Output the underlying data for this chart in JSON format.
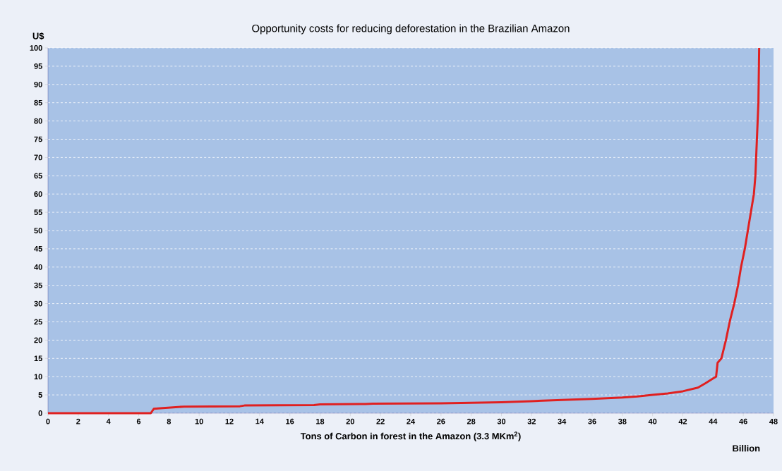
{
  "chart_data": {
    "type": "line",
    "title": "Opportunity costs for reducing deforestation in the Brazilian Amazon",
    "ylabel": "U$",
    "xlabel": "Tons of Carbon in forest in the Amazon (3.3 MKm$^{2}$)",
    "annotations": [
      "Billion"
    ],
    "x": [
      0,
      6.8,
      7.0,
      7.6,
      9,
      12.7,
      13,
      17.6,
      18,
      21,
      21.5,
      26,
      30,
      32,
      34,
      36,
      38,
      39,
      40,
      41,
      42,
      43,
      43.5,
      44,
      44.2,
      44.3,
      44.55,
      44.85,
      45.1,
      45.4,
      45.65,
      45.85,
      46.1,
      46.3,
      46.5,
      46.7,
      46.8,
      46.9,
      47.0,
      47.05
    ],
    "series": [
      {
        "color": "#e02020",
        "values": [
          0,
          0,
          1.2,
          1.4,
          1.8,
          1.9,
          2.1,
          2.2,
          2.4,
          2.5,
          2.6,
          2.7,
          3.0,
          3.3,
          3.6,
          3.9,
          4.3,
          4.6,
          5.0,
          5.4,
          6.0,
          7.0,
          8.2,
          9.5,
          10,
          13.8,
          15,
          20,
          25,
          30,
          35,
          40,
          45,
          50,
          55,
          60,
          65,
          75,
          85,
          100
        ]
      }
    ],
    "xlim": [
      0,
      48
    ],
    "ylim": [
      0,
      100
    ],
    "xticks": [
      0,
      2,
      4,
      6,
      8,
      10,
      12,
      14,
      16,
      18,
      20,
      22,
      24,
      26,
      28,
      30,
      32,
      34,
      36,
      38,
      40,
      42,
      44,
      46,
      48
    ],
    "yticks": [
      0,
      5,
      10,
      15,
      20,
      25,
      30,
      35,
      40,
      45,
      50,
      55,
      60,
      65,
      70,
      75,
      80,
      85,
      90,
      95,
      100
    ],
    "grid": "y"
  }
}
